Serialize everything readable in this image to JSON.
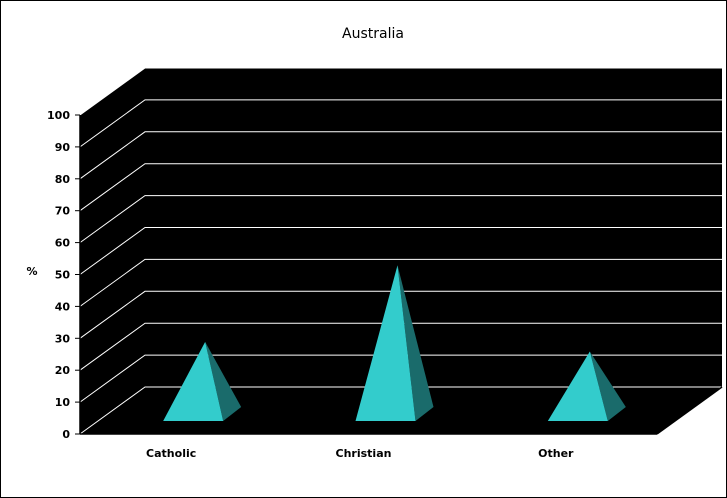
{
  "chart_data": {
    "type": "bar",
    "title": "Australia",
    "ylabel": "%",
    "xlabel": "",
    "categories": [
      "Catholic",
      "Christian",
      "Other"
    ],
    "values": [
      27,
      51,
      24
    ],
    "ylim": [
      0,
      100
    ],
    "yticks": [
      0,
      10,
      20,
      30,
      40,
      50,
      60,
      70,
      80,
      90,
      100
    ],
    "grid": true,
    "legend": "none",
    "style": "3d-pyramid",
    "colors": {
      "plot_background": "#000000",
      "gridlines": "#ffffff",
      "pyramid_front": "#33cccc",
      "pyramid_side": "#1a6b6b"
    }
  }
}
